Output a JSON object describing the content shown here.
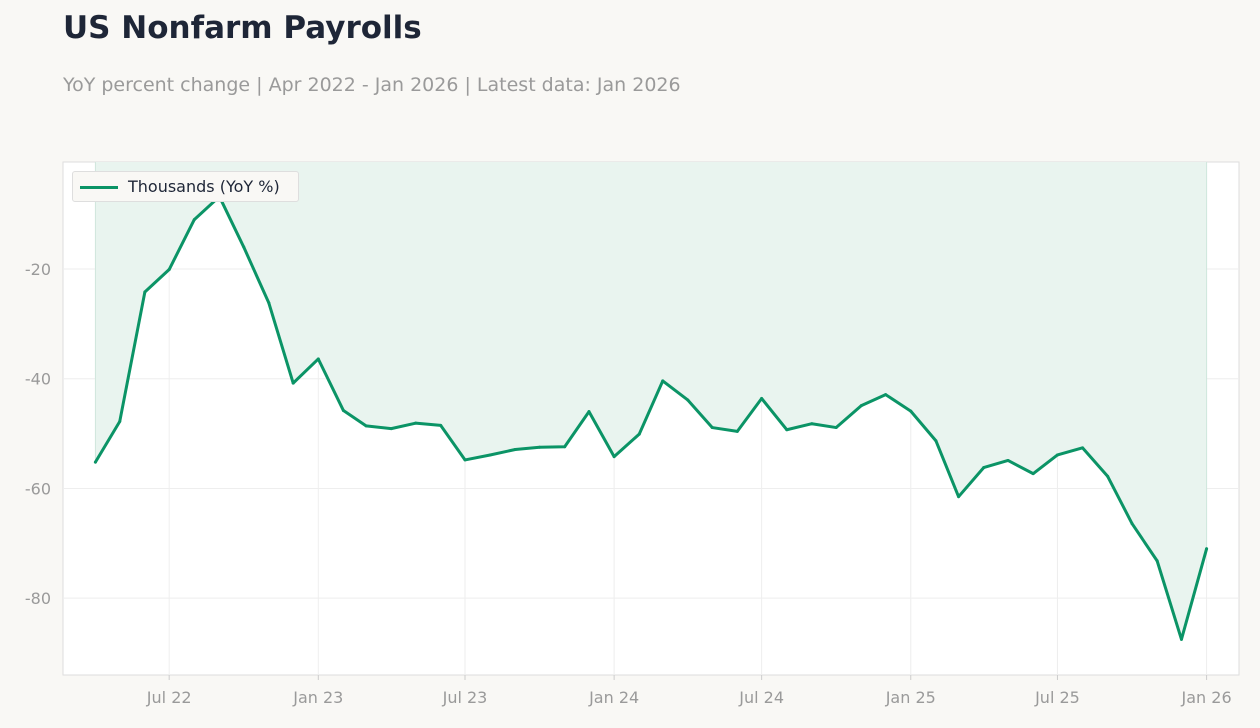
{
  "header": {
    "title": "US Nonfarm Payrolls",
    "subtitle": "YoY percent change | Apr 2022 - Jan 2026 | Latest data: Jan 2026"
  },
  "colors": {
    "line": "#0b9466",
    "fill": "#e9f4ef",
    "grid": "#eeeeee",
    "axis_text": "#9a9a9a",
    "title": "#1e2637",
    "background": "#f9f8f5",
    "plot_background": "#ffffff"
  },
  "chart_data": {
    "type": "line",
    "title": "US Nonfarm Payrolls",
    "subtitle": "YoY percent change | Apr 2022 - Jan 2026 | Latest data: Jan 2026",
    "xlabel": "",
    "ylabel": "",
    "x_tick_labels": [
      "Jul 22",
      "Jan 23",
      "Jul 23",
      "Jan 24",
      "Jul 24",
      "Jan 25",
      "Jul 25",
      "Jan 26"
    ],
    "y_ticks": [
      -20,
      -40,
      -60,
      -80
    ],
    "xlim": [
      "2022-02-20",
      "2026-02-10"
    ],
    "ylim": [
      -94,
      -0.5
    ],
    "grid": true,
    "legend": "top-left",
    "fill_to": "top",
    "series": [
      {
        "name": "Thousands (YoY %)",
        "x": [
          "2022-04-01",
          "2022-05-01",
          "2022-06-01",
          "2022-07-01",
          "2022-08-01",
          "2022-09-01",
          "2022-10-01",
          "2022-11-01",
          "2022-12-01",
          "2023-01-01",
          "2023-02-01",
          "2023-03-01",
          "2023-04-01",
          "2023-05-01",
          "2023-06-01",
          "2023-07-01",
          "2023-08-01",
          "2023-09-01",
          "2023-10-01",
          "2023-11-01",
          "2023-12-01",
          "2024-01-01",
          "2024-02-01",
          "2024-03-01",
          "2024-04-01",
          "2024-05-01",
          "2024-06-01",
          "2024-07-01",
          "2024-08-01",
          "2024-09-01",
          "2024-10-01",
          "2024-11-01",
          "2024-12-01",
          "2025-01-01",
          "2025-02-01",
          "2025-03-01",
          "2025-04-01",
          "2025-05-01",
          "2025-06-01",
          "2025-07-01",
          "2025-08-01",
          "2025-09-01",
          "2025-10-01",
          "2025-11-01",
          "2025-12-01",
          "2026-01-01"
        ],
        "values": [
          -55.2,
          -47.8,
          -24.2,
          -20.1,
          -11.0,
          -6.8,
          -16.0,
          -26.2,
          -40.8,
          -36.4,
          -45.8,
          -48.6,
          -49.1,
          -48.1,
          -48.5,
          -54.8,
          -53.9,
          -52.9,
          -52.5,
          -52.4,
          -46.0,
          -54.2,
          -50.1,
          -40.4,
          -43.9,
          -48.9,
          -49.6,
          -43.6,
          -49.3,
          -48.2,
          -48.9,
          -44.9,
          -42.9,
          -45.9,
          -51.3,
          -61.5,
          -56.2,
          -54.9,
          -57.3,
          -53.9,
          -52.6,
          -57.8,
          -66.4,
          -73.2,
          -87.5,
          -71.0
        ]
      }
    ]
  }
}
